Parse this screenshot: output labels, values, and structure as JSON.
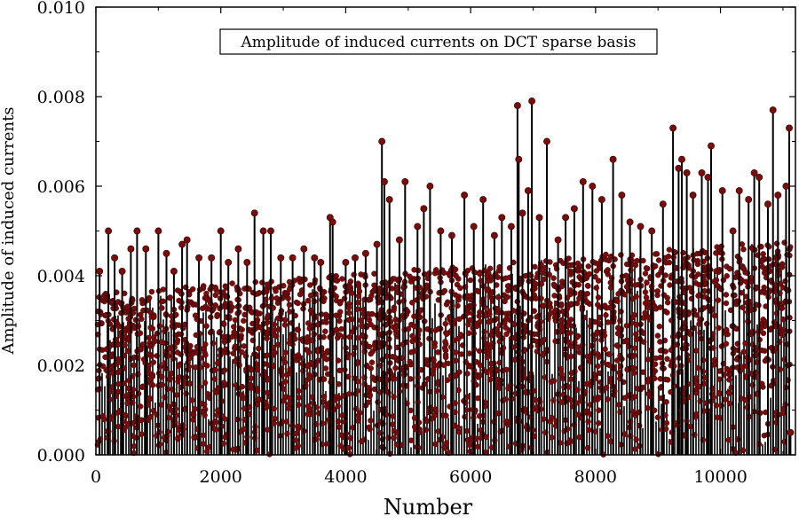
{
  "chart_data": {
    "type": "scatter",
    "style": "stem",
    "title": "Amplitude of induced currents on DCT sparse basis",
    "xlabel": "Number",
    "ylabel": "Amplitude of induced currents",
    "xlim": [
      0,
      11200
    ],
    "ylim": [
      0,
      0.01
    ],
    "x_ticks": [
      0,
      2000,
      4000,
      6000,
      8000,
      10000
    ],
    "x_tick_labels": [
      "0",
      "2000",
      "4000",
      "6000",
      "8000",
      "10000"
    ],
    "y_ticks": [
      0.0,
      0.002,
      0.004,
      0.006,
      0.008,
      0.01
    ],
    "y_tick_labels": [
      "0.000",
      "0.002",
      "0.004",
      "0.006",
      "0.008",
      "0.010"
    ],
    "grid": false,
    "legend_position": "top-center",
    "colors": {
      "marker": "#7a0c0c",
      "stem": "#000000",
      "axis": "#000000"
    },
    "series": [
      {
        "name": "Amplitude of induced currents on DCT sparse basis",
        "points": [
          [
            60,
            0.0041
          ],
          [
            200,
            0.005
          ],
          [
            300,
            0.0044
          ],
          [
            420,
            0.0041
          ],
          [
            560,
            0.0046
          ],
          [
            660,
            0.005
          ],
          [
            800,
            0.0046
          ],
          [
            1000,
            0.005
          ],
          [
            1130,
            0.0045
          ],
          [
            1250,
            0.0041
          ],
          [
            1380,
            0.0047
          ],
          [
            1460,
            0.0048
          ],
          [
            1650,
            0.0044
          ],
          [
            1850,
            0.0044
          ],
          [
            2000,
            0.005
          ],
          [
            2120,
            0.0043
          ],
          [
            2280,
            0.0046
          ],
          [
            2420,
            0.0043
          ],
          [
            2540,
            0.0054
          ],
          [
            2680,
            0.005
          ],
          [
            2800,
            0.005
          ],
          [
            2960,
            0.0044
          ],
          [
            3150,
            0.0044
          ],
          [
            3330,
            0.0046
          ],
          [
            3500,
            0.0044
          ],
          [
            3600,
            0.0043
          ],
          [
            3750,
            0.0053
          ],
          [
            3790,
            0.0052
          ],
          [
            4000,
            0.0043
          ],
          [
            4150,
            0.0044
          ],
          [
            4320,
            0.0045
          ],
          [
            4500,
            0.0047
          ],
          [
            4580,
            0.007
          ],
          [
            4620,
            0.0061
          ],
          [
            4700,
            0.0057
          ],
          [
            4860,
            0.0048
          ],
          [
            4950,
            0.0061
          ],
          [
            5150,
            0.0051
          ],
          [
            5250,
            0.0055
          ],
          [
            5350,
            0.006
          ],
          [
            5520,
            0.005
          ],
          [
            5700,
            0.0049
          ],
          [
            5900,
            0.0058
          ],
          [
            6050,
            0.0051
          ],
          [
            6200,
            0.0057
          ],
          [
            6380,
            0.0049
          ],
          [
            6500,
            0.0053
          ],
          [
            6650,
            0.0051
          ],
          [
            6750,
            0.0078
          ],
          [
            6770,
            0.0066
          ],
          [
            6830,
            0.0054
          ],
          [
            6920,
            0.0059
          ],
          [
            6980,
            0.0079
          ],
          [
            7100,
            0.0053
          ],
          [
            7220,
            0.007
          ],
          [
            7400,
            0.0048
          ],
          [
            7520,
            0.0053
          ],
          [
            7660,
            0.0055
          ],
          [
            7800,
            0.0061
          ],
          [
            7950,
            0.006
          ],
          [
            8100,
            0.0057
          ],
          [
            8280,
            0.0066
          ],
          [
            8420,
            0.0058
          ],
          [
            8550,
            0.0052
          ],
          [
            8720,
            0.0051
          ],
          [
            8900,
            0.005
          ],
          [
            9080,
            0.0056
          ],
          [
            9240,
            0.0073
          ],
          [
            9330,
            0.0064
          ],
          [
            9380,
            0.0066
          ],
          [
            9460,
            0.0063
          ],
          [
            9560,
            0.0058
          ],
          [
            9700,
            0.0063
          ],
          [
            9800,
            0.0062
          ],
          [
            9850,
            0.0069
          ],
          [
            10030,
            0.0059
          ],
          [
            10200,
            0.005
          ],
          [
            10300,
            0.0059
          ],
          [
            10450,
            0.0057
          ],
          [
            10540,
            0.0063
          ],
          [
            10620,
            0.0062
          ],
          [
            10760,
            0.0056
          ],
          [
            10840,
            0.0077
          ],
          [
            10920,
            0.0058
          ],
          [
            11050,
            0.006
          ],
          [
            11100,
            0.0073
          ],
          [
            11120,
            0.0005
          ]
        ]
      }
    ]
  }
}
